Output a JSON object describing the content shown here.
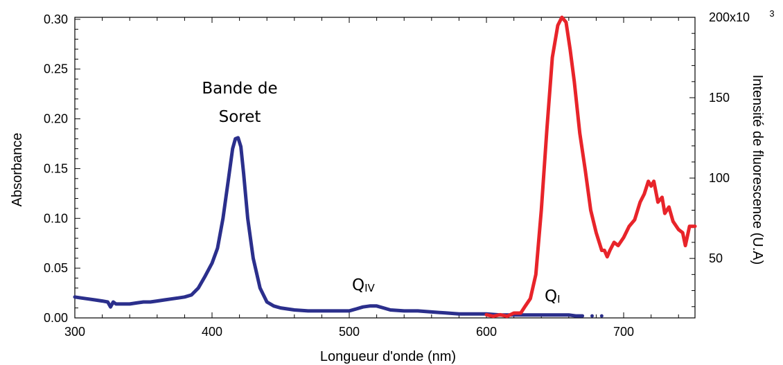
{
  "chart_data": {
    "type": "line",
    "xlabel": "Longueur d'onde (nm)",
    "ylabel_left": "Absorbance",
    "ylabel_right": "Intensité de fluorescence (U.A)",
    "xlim": [
      300,
      752
    ],
    "ylim_left": [
      0,
      0.302
    ],
    "ylim_right": [
      13,
      200
    ],
    "x_ticks": [
      "300",
      "400",
      "500",
      "600",
      "700"
    ],
    "y_left_ticks": [
      "0.00",
      "0.05",
      "0.10",
      "0.15",
      "0.20",
      "0.25",
      "0.30"
    ],
    "y_right_ticks": [
      "50",
      "100",
      "150",
      "200x10"
    ],
    "y_right_exponent": "3",
    "grid": false,
    "colors": {
      "absorbance": "#2b2f8c",
      "fluorescence": "#e8242a"
    },
    "annotations": {
      "soret_line1": "Bande de",
      "soret_line2": "Soret",
      "q4_main": "Q",
      "q4_sub": "IV",
      "q1_main": "Q",
      "q1_sub": "I"
    },
    "series": [
      {
        "axis": "left",
        "x": [
          300,
          305,
          310,
          315,
          320,
          324,
          326,
          328,
          330,
          335,
          340,
          345,
          350,
          355,
          360,
          365,
          370,
          375,
          380,
          385,
          390,
          395,
          400,
          404,
          408,
          412,
          415,
          417,
          419,
          421,
          423,
          426,
          430,
          435,
          440,
          445,
          450,
          460,
          470,
          480,
          490,
          500,
          505,
          510,
          515,
          520,
          525,
          530,
          540,
          550,
          560,
          570,
          580,
          590,
          600,
          610,
          620,
          630,
          640,
          650,
          655,
          660,
          665,
          670
        ],
        "y": [
          0.021,
          0.02,
          0.019,
          0.018,
          0.017,
          0.016,
          0.011,
          0.016,
          0.014,
          0.014,
          0.014,
          0.015,
          0.016,
          0.016,
          0.017,
          0.018,
          0.019,
          0.02,
          0.021,
          0.023,
          0.03,
          0.042,
          0.055,
          0.07,
          0.1,
          0.14,
          0.17,
          0.18,
          0.181,
          0.172,
          0.145,
          0.1,
          0.06,
          0.03,
          0.016,
          0.012,
          0.01,
          0.008,
          0.007,
          0.007,
          0.007,
          0.007,
          0.009,
          0.011,
          0.012,
          0.012,
          0.01,
          0.008,
          0.007,
          0.007,
          0.006,
          0.005,
          0.004,
          0.004,
          0.004,
          0.003,
          0.003,
          0.003,
          0.003,
          0.003,
          0.003,
          0.003,
          0.002,
          0.002
        ]
      },
      {
        "axis": "right",
        "x": [
          600,
          605,
          610,
          615,
          620,
          625,
          628,
          632,
          636,
          640,
          644,
          648,
          652,
          655,
          658,
          661,
          664,
          668,
          672,
          676,
          680,
          684,
          686,
          688,
          690,
          693,
          696,
          700,
          704,
          708,
          712,
          715,
          718,
          720,
          722,
          725,
          728,
          730,
          733,
          736,
          740,
          743,
          745,
          748,
          752
        ],
        "y": [
          15,
          14,
          15,
          14,
          16,
          16,
          20,
          25,
          40,
          80,
          130,
          175,
          195,
          200,
          197,
          180,
          160,
          128,
          105,
          80,
          66,
          55,
          55,
          51,
          55,
          60,
          58,
          63,
          70,
          74,
          85,
          90,
          98,
          95,
          98,
          85,
          88,
          78,
          82,
          73,
          68,
          66,
          58,
          70,
          70
        ]
      }
    ]
  }
}
